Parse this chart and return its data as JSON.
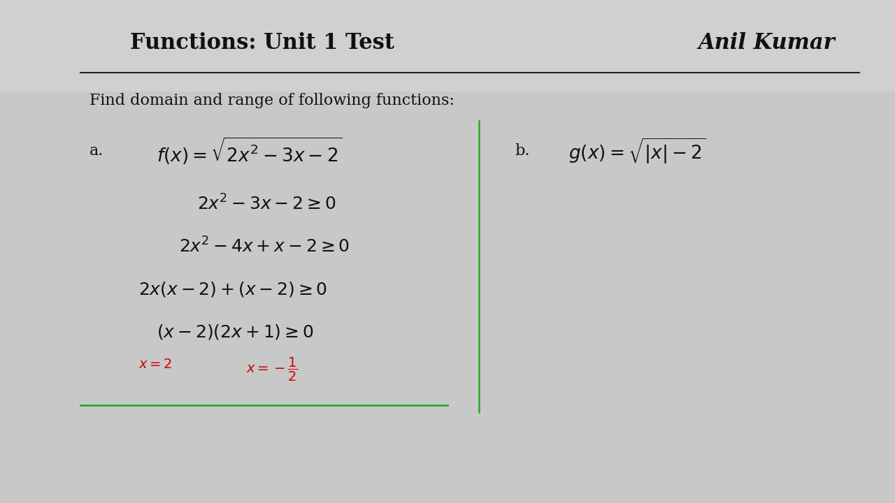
{
  "title_left": "Functions: Unit 1 Test",
  "title_right": "Anil Kumar",
  "subtitle": "Find domain and range of following functions:",
  "bg_color_top": "#d8d8d8",
  "bg_color_main": "#e8e8e8",
  "label_a": "a.",
  "label_b": "b.",
  "func_a": "$f(x) = \\sqrt{2x^2 - 3x - 2}$",
  "func_b": "$g(x) = \\sqrt{|x| - 2}$",
  "step1": "$2x^2 - 3x - 2 \\geq 0$",
  "step2": "$2x^2 - 4x + x - 2 \\geq 0$",
  "step3": "$2x(x-2) + (x-2) \\geq 0$",
  "step4": "$(x-2)(2x+1) \\geq 0$",
  "red_note1": "$x = 2$",
  "red_note2": "$x = -\\dfrac{1}{2}$",
  "green_line_x": 0.535,
  "divider_line_color": "#222222",
  "red_color": "#cc0000",
  "green_color": "#22aa22"
}
